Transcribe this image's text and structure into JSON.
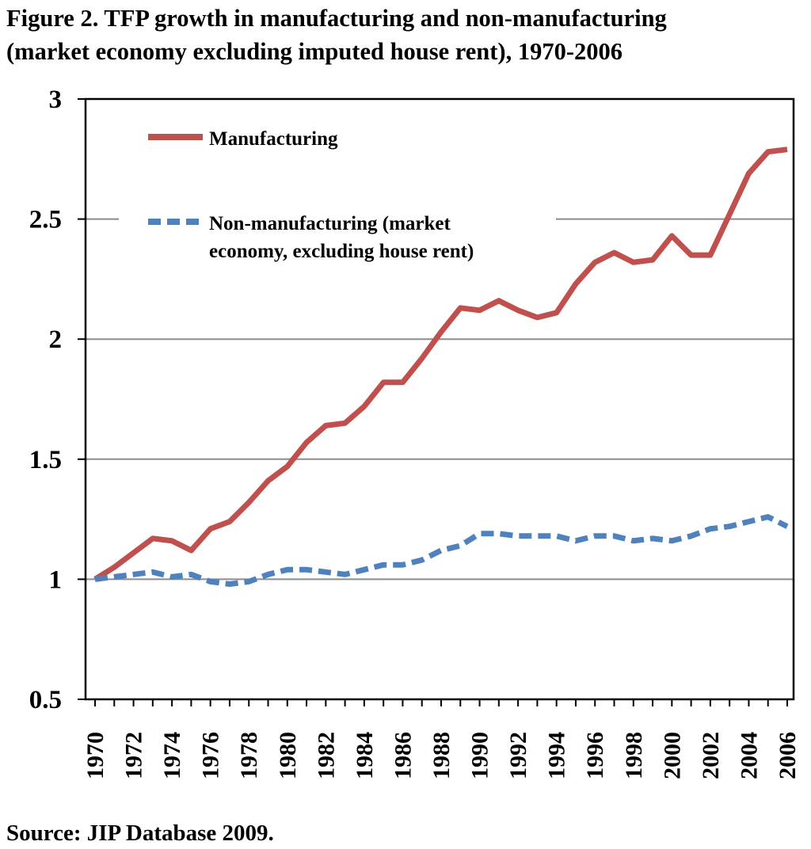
{
  "title": {
    "line1": "Figure 2. TFP growth in manufacturing and non-manufacturing",
    "line2": "(market economy excluding imputed house rent), 1970-2006"
  },
  "source": "Source: JIP Database 2009.",
  "chart_data": {
    "type": "line",
    "title": "Figure 2. TFP growth in manufacturing and non-manufacturing (market economy excluding imputed house rent), 1970-2006",
    "xlabel": "",
    "ylabel": "",
    "ylim": [
      0.5,
      3
    ],
    "yticks": [
      "3",
      "2.5",
      "2",
      "1.5",
      "1",
      "0.5"
    ],
    "ytick_values": [
      3,
      2.5,
      2,
      1.5,
      1,
      0.5
    ],
    "xticks": [
      "1970",
      "1972",
      "1974",
      "1976",
      "1978",
      "1980",
      "1982",
      "1984",
      "1986",
      "1988",
      "1990",
      "1992",
      "1994",
      "1996",
      "1998",
      "2000",
      "2002",
      "2004",
      "2006"
    ],
    "grid": true,
    "legend_position": "top-left",
    "x": [
      1970,
      1971,
      1972,
      1973,
      1974,
      1975,
      1976,
      1977,
      1978,
      1979,
      1980,
      1981,
      1982,
      1983,
      1984,
      1985,
      1986,
      1987,
      1988,
      1989,
      1990,
      1991,
      1992,
      1993,
      1994,
      1995,
      1996,
      1997,
      1998,
      1999,
      2000,
      2001,
      2002,
      2003,
      2004,
      2005,
      2006
    ],
    "series": [
      {
        "name": "Manufacturing",
        "color": "#C0504D",
        "style": "solid",
        "values": [
          1.0,
          1.05,
          1.11,
          1.17,
          1.16,
          1.12,
          1.21,
          1.24,
          1.32,
          1.41,
          1.47,
          1.57,
          1.64,
          1.65,
          1.72,
          1.82,
          1.82,
          1.92,
          2.03,
          2.13,
          2.12,
          2.16,
          2.12,
          2.09,
          2.11,
          2.23,
          2.32,
          2.36,
          2.32,
          2.33,
          2.43,
          2.35,
          2.35,
          2.52,
          2.69,
          2.78,
          2.79
        ]
      },
      {
        "name_line1": "Non-manufacturing (market",
        "name_line2": "economy, excluding house rent)",
        "color": "#4F81BD",
        "style": "dashed",
        "values": [
          1.0,
          1.01,
          1.02,
          1.03,
          1.01,
          1.02,
          0.99,
          0.98,
          0.99,
          1.02,
          1.04,
          1.04,
          1.03,
          1.02,
          1.04,
          1.06,
          1.06,
          1.08,
          1.12,
          1.14,
          1.19,
          1.19,
          1.18,
          1.18,
          1.18,
          1.16,
          1.18,
          1.18,
          1.16,
          1.17,
          1.16,
          1.18,
          1.21,
          1.22,
          1.24,
          1.26,
          1.22
        ]
      }
    ]
  }
}
